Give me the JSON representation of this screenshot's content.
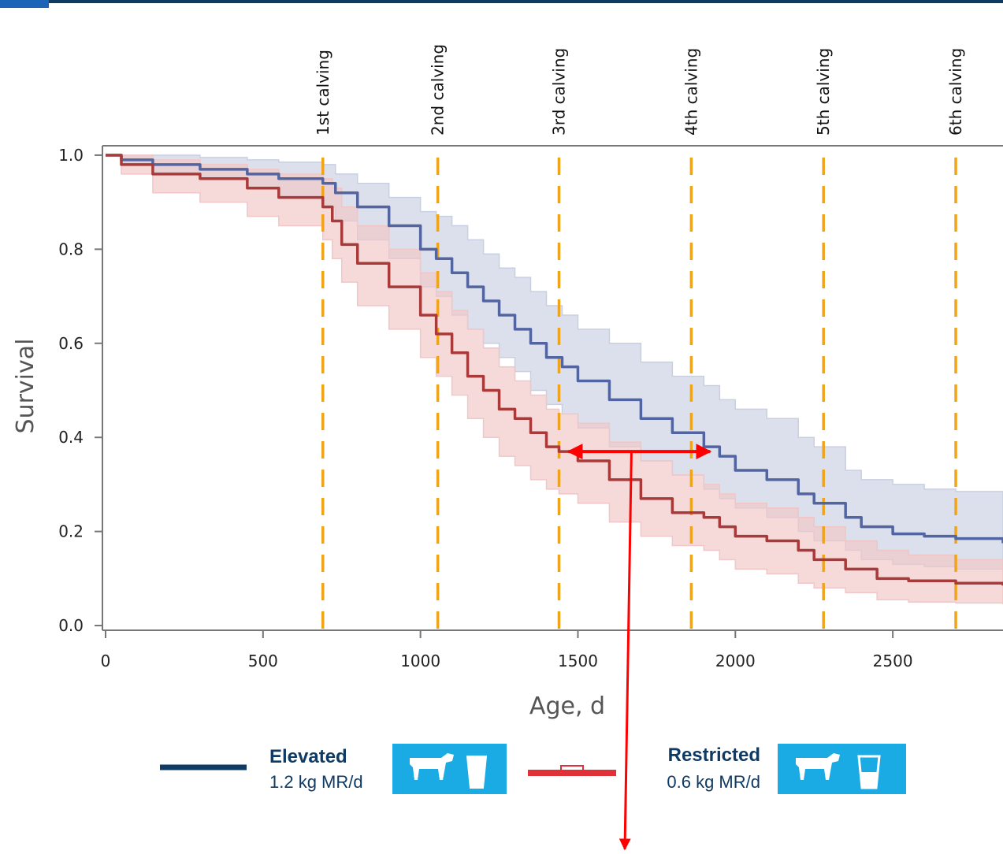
{
  "chart_data": {
    "type": "line",
    "xlabel": "Age, d",
    "ylabel": "Survival",
    "xlim": [
      -10,
      2850
    ],
    "ylim": [
      -0.01,
      1.02
    ],
    "xticks": [
      "0",
      "500",
      "1000",
      "1500",
      "2000",
      "2500"
    ],
    "xtick_values": [
      0,
      500,
      1000,
      1500,
      2000,
      2500
    ],
    "yticks": [
      "0.0",
      "0.2",
      "0.4",
      "0.6",
      "0.8",
      "1.0"
    ],
    "ytick_values": [
      0.0,
      0.2,
      0.4,
      0.6,
      0.8,
      1.0
    ],
    "calving_lines": [
      {
        "label": "1st calving",
        "x": 690
      },
      {
        "label": "2nd calving",
        "x": 1055
      },
      {
        "label": "3rd calving",
        "x": 1440
      },
      {
        "label": "4th calving",
        "x": 1860
      },
      {
        "label": "5th calving",
        "x": 2280
      },
      {
        "label": "6th calving",
        "x": 2700
      }
    ],
    "series": [
      {
        "name": "Elevated",
        "color": "#5265a0",
        "band_color": "#c9cfe2",
        "x": [
          0,
          50,
          150,
          300,
          450,
          550,
          690,
          730,
          800,
          900,
          1000,
          1050,
          1100,
          1150,
          1200,
          1250,
          1300,
          1350,
          1400,
          1450,
          1500,
          1600,
          1700,
          1800,
          1900,
          1950,
          2000,
          2100,
          2200,
          2250,
          2350,
          2400,
          2500,
          2600,
          2700,
          2850
        ],
        "y": [
          1.0,
          0.99,
          0.98,
          0.97,
          0.96,
          0.95,
          0.94,
          0.92,
          0.89,
          0.85,
          0.8,
          0.78,
          0.75,
          0.72,
          0.69,
          0.66,
          0.63,
          0.6,
          0.57,
          0.55,
          0.52,
          0.48,
          0.44,
          0.41,
          0.38,
          0.36,
          0.33,
          0.31,
          0.28,
          0.26,
          0.23,
          0.21,
          0.195,
          0.19,
          0.185,
          0.175
        ],
        "upper": [
          1.0,
          1.0,
          1.0,
          0.995,
          0.99,
          0.985,
          0.98,
          0.96,
          0.94,
          0.91,
          0.88,
          0.87,
          0.85,
          0.82,
          0.79,
          0.76,
          0.74,
          0.71,
          0.68,
          0.66,
          0.63,
          0.6,
          0.56,
          0.53,
          0.51,
          0.48,
          0.46,
          0.44,
          0.4,
          0.38,
          0.33,
          0.31,
          0.3,
          0.29,
          0.285,
          0.275
        ],
        "lower": [
          1.0,
          0.98,
          0.96,
          0.95,
          0.93,
          0.91,
          0.89,
          0.86,
          0.82,
          0.78,
          0.72,
          0.7,
          0.66,
          0.63,
          0.6,
          0.57,
          0.54,
          0.5,
          0.47,
          0.45,
          0.42,
          0.38,
          0.35,
          0.32,
          0.29,
          0.27,
          0.25,
          0.23,
          0.2,
          0.18,
          0.16,
          0.14,
          0.13,
          0.125,
          0.12,
          0.115
        ]
      },
      {
        "name": "Restricted",
        "color": "#a83a3a",
        "band_color": "#f1c6c6",
        "x": [
          0,
          50,
          150,
          300,
          450,
          550,
          690,
          720,
          750,
          800,
          900,
          1000,
          1050,
          1100,
          1150,
          1200,
          1250,
          1300,
          1350,
          1400,
          1440,
          1500,
          1600,
          1700,
          1800,
          1900,
          1950,
          2000,
          2100,
          2200,
          2250,
          2350,
          2450,
          2550,
          2700,
          2850
        ],
        "y": [
          1.0,
          0.98,
          0.96,
          0.95,
          0.93,
          0.91,
          0.89,
          0.86,
          0.81,
          0.77,
          0.72,
          0.66,
          0.62,
          0.58,
          0.53,
          0.5,
          0.46,
          0.44,
          0.41,
          0.38,
          0.37,
          0.35,
          0.31,
          0.27,
          0.24,
          0.23,
          0.21,
          0.19,
          0.18,
          0.16,
          0.14,
          0.12,
          0.1,
          0.095,
          0.09,
          0.085
        ],
        "upper": [
          1.0,
          1.0,
          0.99,
          0.98,
          0.97,
          0.96,
          0.95,
          0.93,
          0.89,
          0.85,
          0.8,
          0.75,
          0.71,
          0.67,
          0.63,
          0.59,
          0.55,
          0.52,
          0.49,
          0.46,
          0.45,
          0.43,
          0.39,
          0.35,
          0.32,
          0.3,
          0.28,
          0.26,
          0.25,
          0.23,
          0.21,
          0.18,
          0.16,
          0.15,
          0.14,
          0.13
        ],
        "lower": [
          1.0,
          0.96,
          0.92,
          0.9,
          0.87,
          0.85,
          0.82,
          0.78,
          0.73,
          0.68,
          0.63,
          0.57,
          0.53,
          0.49,
          0.44,
          0.4,
          0.36,
          0.34,
          0.31,
          0.29,
          0.28,
          0.26,
          0.22,
          0.19,
          0.17,
          0.16,
          0.14,
          0.12,
          0.11,
          0.09,
          0.08,
          0.07,
          0.055,
          0.05,
          0.048,
          0.045
        ]
      }
    ],
    "annotation": {
      "type": "double-arrow",
      "color": "#ff0000",
      "x_from": 1470,
      "x_to": 1920,
      "y": 0.37,
      "drop_x": 1670
    }
  },
  "legend": {
    "elevated": {
      "title": "Elevated",
      "subtitle": "1.2 kg MR/d",
      "icon_bg": "#1aabe4",
      "line_color": "#0f3a64"
    },
    "restricted": {
      "title": "Restricted",
      "subtitle": "0.6 kg MR/d",
      "icon_bg": "#1aabe4",
      "line_color": "#e03038"
    }
  }
}
